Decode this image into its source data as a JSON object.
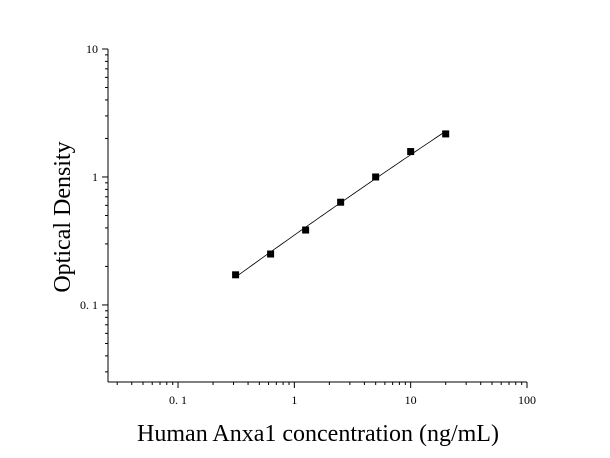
{
  "chart_data": {
    "type": "scatter",
    "title": "",
    "xlabel": "Human Anxa1 concentration (ng/mL)",
    "ylabel": "Optical Density",
    "x_scale": "log",
    "y_scale": "log",
    "xlim": [
      0.025,
      100
    ],
    "ylim": [
      0.025,
      10
    ],
    "x_ticks": [
      0.1,
      1,
      10,
      100
    ],
    "x_tick_labels": [
      "0. 1",
      "1",
      "10",
      "100"
    ],
    "y_ticks": [
      0.1,
      1,
      10
    ],
    "y_tick_labels": [
      "0. 1",
      "1",
      "10"
    ],
    "grid": false,
    "legend": "none",
    "series": [
      {
        "x": [
          0.3125,
          0.625,
          1.25,
          2.5,
          5,
          10,
          20
        ],
        "y": [
          0.172,
          0.25,
          0.385,
          0.635,
          1.0,
          1.58,
          2.17
        ]
      }
    ],
    "fit_curve": true,
    "colors": {
      "marker": "#000000",
      "line": "#000000"
    }
  }
}
